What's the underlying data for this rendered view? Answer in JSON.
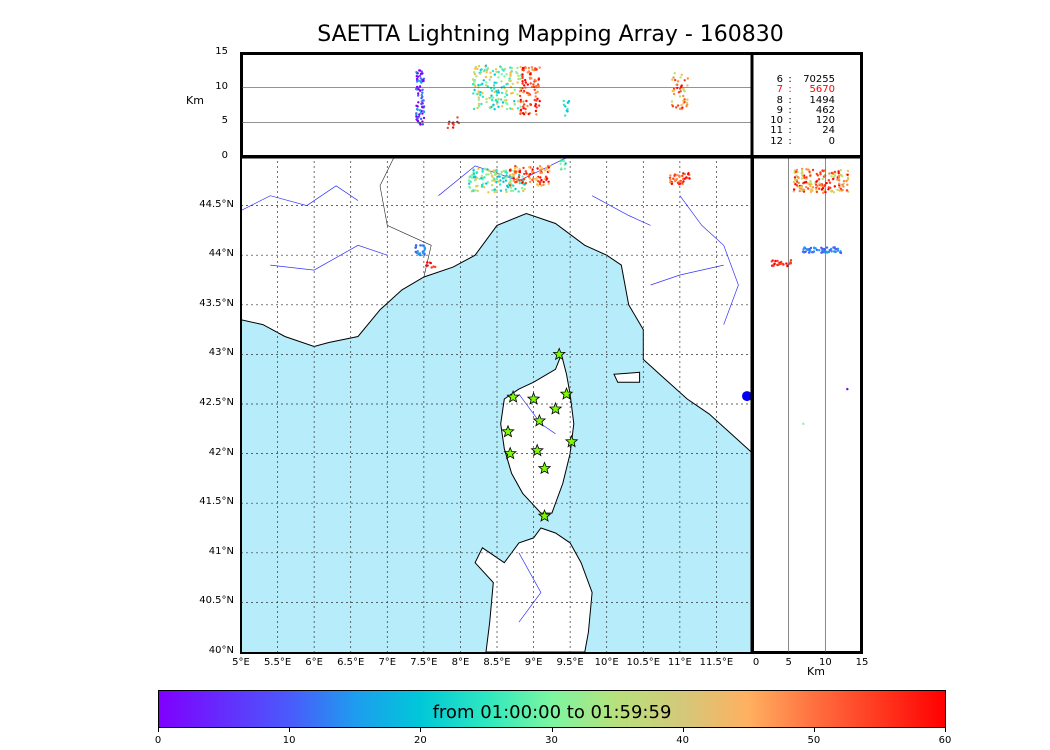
{
  "title": "SAETTA Lightning Mapping Array - 160830",
  "alt_axis": {
    "label": "Km",
    "ticks": [
      "15",
      "10",
      "5",
      "0"
    ]
  },
  "lat_ticks": [
    "44.5°N",
    "44°N",
    "43.5°N",
    "43°N",
    "42.5°N",
    "42°N",
    "41.5°N",
    "41°N",
    "40.5°N",
    "40°N"
  ],
  "lon_ticks": [
    "5°E",
    "5.5°E",
    "6°E",
    "6.5°E",
    "7°E",
    "7.5°E",
    "8°E",
    "8.5°E",
    "9°E",
    "9.5°E",
    "10°E",
    "10.5°E",
    "11°E",
    "11.5°E"
  ],
  "side_axis": {
    "label": "Km",
    "ticks": [
      "0",
      "5",
      "10",
      "15"
    ]
  },
  "station_counts": [
    {
      "stations": "6",
      "count": "70255",
      "color": "#000000"
    },
    {
      "stations": "7",
      "count": "5670",
      "color": "#ff0000"
    },
    {
      "stations": "8",
      "count": "1494",
      "color": "#000000"
    },
    {
      "stations": "9",
      "count": "462",
      "color": "#000000"
    },
    {
      "stations": "10",
      "count": "120",
      "color": "#000000"
    },
    {
      "stations": "11",
      "count": "24",
      "color": "#000000"
    },
    {
      "stations": "12",
      "count": "0",
      "color": "#000000"
    }
  ],
  "colorbar": {
    "label": "from 01:00:00 to 01:59:59",
    "ticks": [
      "0",
      "10",
      "20",
      "30",
      "40",
      "50",
      "60"
    ],
    "range": [
      0,
      60
    ]
  },
  "colors": {
    "sea": "#b7ecfb",
    "land": "#ffffff",
    "rivers": "#3333ff",
    "station_marker": "#7cfc00"
  }
}
